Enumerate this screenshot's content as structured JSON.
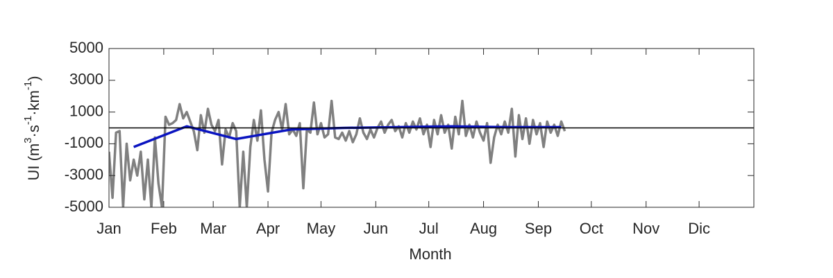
{
  "chart_data": {
    "type": "line",
    "xlabel": "Month",
    "ylabel": [
      "UI (m",
      "3",
      "·s",
      "-1",
      "·km",
      "-1",
      ")"
    ],
    "xlim": [
      1,
      366
    ],
    "ylim": [
      -5000,
      5000
    ],
    "xticks": [
      {
        "value": 1,
        "label": "Jan"
      },
      {
        "value": 32,
        "label": "Feb"
      },
      {
        "value": 60,
        "label": "Mar"
      },
      {
        "value": 91,
        "label": "Apr"
      },
      {
        "value": 121,
        "label": "May"
      },
      {
        "value": 152,
        "label": "Jun"
      },
      {
        "value": 182,
        "label": "Jul"
      },
      {
        "value": 213,
        "label": "Aug"
      },
      {
        "value": 244,
        "label": "Sep"
      },
      {
        "value": 274,
        "label": "Oct"
      },
      {
        "value": 305,
        "label": "Nov"
      },
      {
        "value": 335,
        "label": "Dic"
      }
    ],
    "yticks": [
      -5000,
      -3000,
      -1000,
      1000,
      3000,
      5000
    ],
    "reference_line": 0,
    "series": [
      {
        "color": "#808080",
        "x": [
          1,
          3,
          5,
          7,
          9,
          11,
          13,
          15,
          17,
          19,
          21,
          23,
          25,
          27,
          29,
          31,
          33,
          35,
          37,
          39,
          41,
          43,
          45,
          47,
          49,
          51,
          53,
          55,
          57,
          59,
          61,
          63,
          65,
          67,
          69,
          71,
          73,
          75,
          77,
          79,
          81,
          83,
          85,
          87,
          89,
          91,
          93,
          95,
          97,
          99,
          101,
          103,
          105,
          107,
          109,
          111,
          113,
          115,
          117,
          119,
          121,
          123,
          125,
          127,
          129,
          131,
          133,
          135,
          137,
          139,
          141,
          143,
          145,
          147,
          149,
          151,
          153,
          155,
          157,
          159,
          161,
          163,
          165,
          167,
          169,
          171,
          173,
          175,
          177,
          179,
          181,
          183,
          185,
          187,
          189,
          191,
          193,
          195,
          197,
          199,
          201,
          203,
          205,
          207,
          209,
          211,
          213,
          215,
          217,
          219,
          221,
          223,
          225,
          227,
          229,
          231,
          233,
          235,
          237,
          239,
          241,
          243,
          245,
          247,
          249,
          251,
          253,
          255,
          257,
          259
        ],
        "values": [
          -1500,
          -4400,
          -300,
          -200,
          -5000,
          -1000,
          -3300,
          -2000,
          -3000,
          -1500,
          -4500,
          -2000,
          -5000,
          -600,
          -3500,
          -5000,
          700,
          200,
          300,
          500,
          1500,
          600,
          1000,
          400,
          -200,
          -1400,
          800,
          -300,
          1200,
          200,
          -200,
          500,
          -2300,
          -100,
          -600,
          300,
          -200,
          -5000,
          -1500,
          -5000,
          -1200,
          500,
          -800,
          1100,
          -2000,
          -4000,
          -300,
          500,
          1000,
          -100,
          1500,
          -400,
          -100,
          -500,
          300,
          -3800,
          -100,
          -300,
          1600,
          -400,
          300,
          -600,
          -400,
          1700,
          -600,
          -700,
          -300,
          -800,
          -200,
          -900,
          -400,
          600,
          -300,
          -700,
          -100,
          -600,
          0,
          400,
          -300,
          200,
          500,
          -200,
          100,
          -600,
          300,
          -300,
          400,
          -100,
          600,
          -400,
          200,
          -1200,
          500,
          -400,
          800,
          -300,
          200,
          -1300,
          700,
          -400,
          1700,
          -500,
          200,
          -600,
          400,
          -300,
          -800,
          300,
          -2200,
          -600,
          200,
          -400,
          400,
          -300,
          1200,
          -1800,
          800,
          -700,
          600,
          -1000,
          500,
          -400,
          300,
          -1200,
          400,
          -300,
          200,
          -500,
          400,
          -200
        ]
      },
      {
        "color": "#0a14c0",
        "x": [
          15,
          45,
          73,
          104,
          134,
          165,
          195,
          226,
          257
        ],
        "values": [
          -1200,
          100,
          -700,
          -100,
          0,
          50,
          100,
          50,
          50
        ]
      }
    ]
  }
}
